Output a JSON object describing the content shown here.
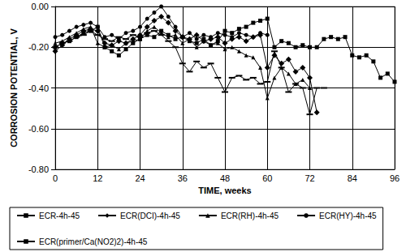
{
  "chart_data": {
    "type": "line",
    "x_label": "TIME, weeks",
    "y_label": "CORROSION POTENTIAL, V",
    "x": [
      0,
      2,
      4,
      6,
      8,
      10,
      12,
      14,
      16,
      18,
      20,
      22,
      24,
      26,
      28,
      30,
      32,
      34,
      36,
      38,
      40,
      42,
      44,
      46,
      48,
      50,
      52,
      54,
      56,
      58,
      60,
      62,
      64,
      66,
      68,
      70,
      72,
      74,
      76,
      78,
      80,
      82,
      84,
      86,
      88,
      90,
      92,
      94,
      96
    ],
    "series": [
      {
        "name": "ECR-4h-45",
        "color": "#000000",
        "marker": "square",
        "line_style": "solid",
        "values": [
          -0.2,
          -0.18,
          -0.17,
          -0.15,
          -0.13,
          -0.12,
          -0.1,
          -0.2,
          -0.22,
          -0.24,
          -0.21,
          -0.18,
          -0.16,
          -0.14,
          -0.15,
          -0.12,
          -0.14,
          -0.16,
          -0.15,
          -0.17,
          -0.18,
          -0.16,
          -0.19,
          -0.17,
          -0.12,
          -0.13,
          -0.11,
          -0.1,
          -0.08,
          -0.07,
          -0.06,
          -0.2,
          -0.17,
          -0.18,
          -0.2,
          -0.19,
          -0.2,
          -0.2,
          -0.16,
          -0.15,
          -0.16,
          -0.15,
          -0.24,
          -0.25,
          -0.24,
          -0.27,
          -0.35,
          -0.33,
          -0.37
        ]
      },
      {
        "name": "ECR(DCI)-4h-45",
        "color": "#000000",
        "marker": "diamond",
        "line_style": "solid",
        "values": [
          -0.22,
          -0.19,
          -0.16,
          -0.14,
          -0.12,
          -0.11,
          -0.12,
          -0.18,
          -0.19,
          -0.17,
          -0.18,
          -0.16,
          -0.14,
          -0.1,
          -0.07,
          -0.05,
          -0.08,
          -0.12,
          -0.15,
          -0.16,
          -0.14,
          -0.17,
          -0.16,
          -0.15,
          -0.18,
          -0.16,
          -0.15,
          -0.17,
          -0.15,
          -0.14,
          -0.3,
          -0.24,
          -0.28,
          -0.26,
          -0.32,
          -0.3,
          -0.35,
          -0.52,
          null,
          null,
          null,
          null,
          null,
          null,
          null,
          null,
          null,
          null,
          null
        ]
      },
      {
        "name": "ECR(RH)-4h-45",
        "color": "#000000",
        "marker": "triangle",
        "line_style": "solid",
        "values": [
          -0.18,
          -0.17,
          -0.15,
          -0.13,
          -0.11,
          -0.1,
          -0.18,
          -0.2,
          -0.19,
          -0.21,
          -0.18,
          -0.17,
          -0.16,
          -0.12,
          -0.1,
          -0.13,
          -0.15,
          -0.14,
          -0.18,
          -0.16,
          -0.2,
          -0.17,
          -0.19,
          -0.18,
          -0.21,
          -0.2,
          -0.22,
          -0.24,
          -0.25,
          -0.3,
          -0.45,
          -0.35,
          -0.3,
          -0.33,
          -0.38,
          -0.36,
          -0.4,
          null,
          null,
          null,
          null,
          null,
          null,
          null,
          null,
          null,
          null,
          null,
          null
        ]
      },
      {
        "name": "ECR(HY)-4h-45",
        "color": "#000000",
        "marker": "circle",
        "line_style": "solid",
        "values": [
          -0.15,
          -0.14,
          -0.12,
          -0.1,
          -0.09,
          -0.08,
          -0.1,
          -0.15,
          -0.14,
          -0.16,
          -0.13,
          -0.12,
          -0.1,
          -0.06,
          -0.03,
          0.0,
          -0.05,
          -0.1,
          -0.15,
          -0.13,
          -0.16,
          -0.14,
          -0.15,
          -0.13,
          -0.14,
          -0.15,
          -0.13,
          -0.14,
          -0.15,
          -0.13,
          -0.14,
          null,
          null,
          null,
          null,
          null,
          null,
          null,
          null,
          null,
          null,
          null,
          null,
          null,
          null,
          null,
          null,
          null,
          null
        ]
      },
      {
        "name": "ECR(primer/Ca(NO2)2)-4h-45",
        "color": "#000000",
        "marker": "dash",
        "line_style": "solid",
        "values": [
          -0.2,
          -0.18,
          -0.17,
          -0.15,
          -0.14,
          -0.12,
          -0.14,
          -0.16,
          -0.17,
          -0.15,
          -0.16,
          -0.14,
          -0.15,
          -0.13,
          -0.12,
          -0.14,
          -0.17,
          -0.2,
          -0.28,
          -0.32,
          -0.27,
          -0.3,
          -0.28,
          -0.35,
          -0.42,
          -0.35,
          -0.34,
          -0.36,
          -0.35,
          -0.38,
          -0.37,
          -0.22,
          -0.3,
          -0.42,
          -0.38,
          -0.4,
          -0.53,
          -0.4,
          -0.4,
          null,
          null,
          null,
          null,
          null,
          null,
          null,
          null,
          null,
          null
        ]
      }
    ],
    "xlim": [
      0,
      96
    ],
    "xticks": [
      0,
      12,
      24,
      36,
      48,
      60,
      72,
      84,
      96
    ],
    "ylim": [
      -0.8,
      0
    ],
    "yticks": [
      {
        "value": -0.8,
        "label": "-0.80"
      },
      {
        "value": -0.6,
        "label": "-0.60"
      },
      {
        "value": -0.4,
        "label": "-0.40"
      },
      {
        "value": -0.2,
        "label": "-0.20"
      },
      {
        "value": 0,
        "label": "0.00"
      }
    ],
    "grid": true,
    "legend": "bottom"
  }
}
